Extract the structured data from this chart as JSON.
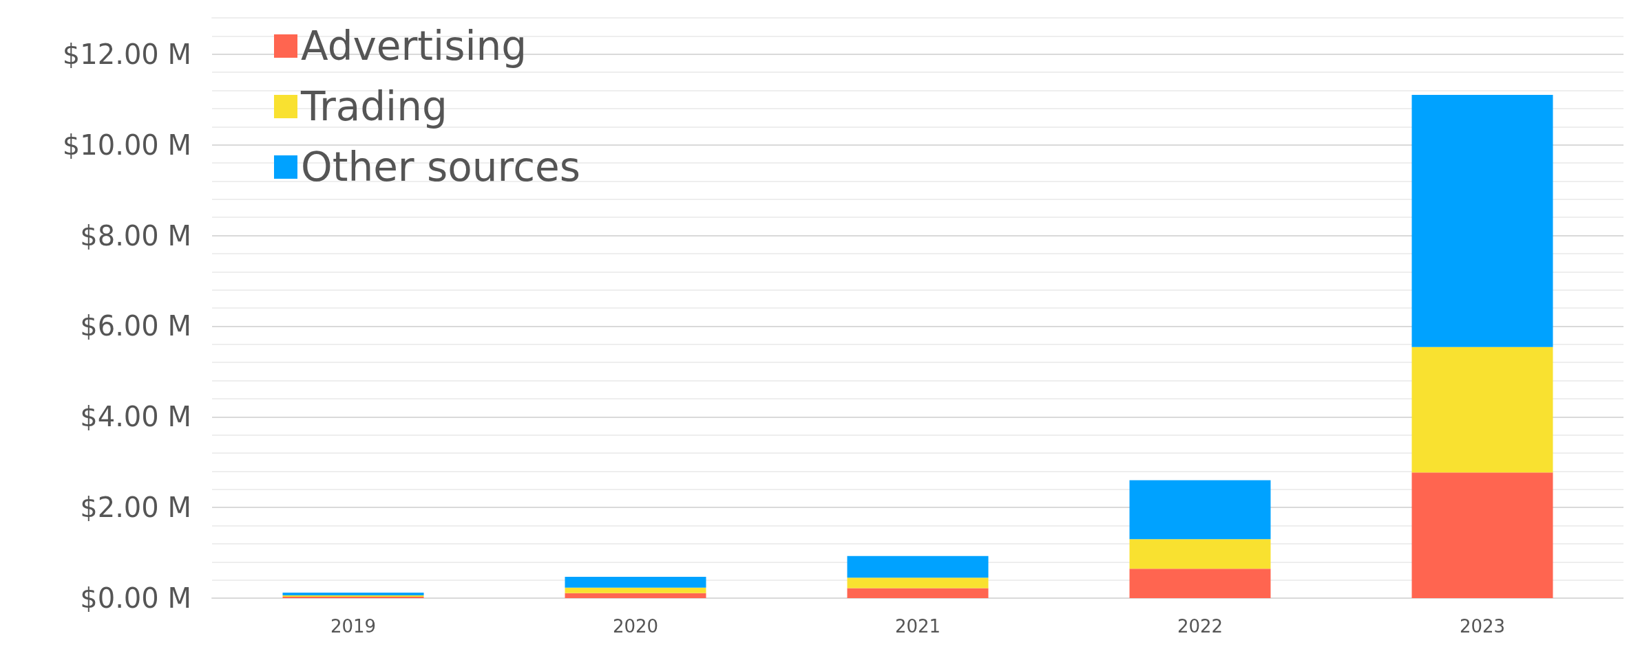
{
  "chart_data": {
    "type": "bar",
    "stacked": true,
    "categories": [
      "2019",
      "2020",
      "2021",
      "2022",
      "2023"
    ],
    "series": [
      {
        "name": "Advertising",
        "color": "#ff6550",
        "values": [
          0.03,
          0.11,
          0.22,
          0.65,
          2.77
        ]
      },
      {
        "name": "Trading",
        "color": "#f9e130",
        "values": [
          0.03,
          0.12,
          0.23,
          0.65,
          2.77
        ]
      },
      {
        "name": "Other sources",
        "color": "#00a2ff",
        "values": [
          0.06,
          0.24,
          0.48,
          1.3,
          5.56
        ]
      }
    ],
    "ylim": [
      0,
      12.8
    ],
    "yticks": [
      {
        "value": 0,
        "label": "$0.00 M"
      },
      {
        "value": 2,
        "label": "$2.00 M"
      },
      {
        "value": 4,
        "label": "$4.00 M"
      },
      {
        "value": 6,
        "label": "$6.00 M"
      },
      {
        "value": 8,
        "label": "$8.00 M"
      },
      {
        "value": 10,
        "label": "$10.00 M"
      },
      {
        "value": 12,
        "label": "$12.00 M"
      }
    ],
    "grid": true,
    "legend": "top left"
  }
}
